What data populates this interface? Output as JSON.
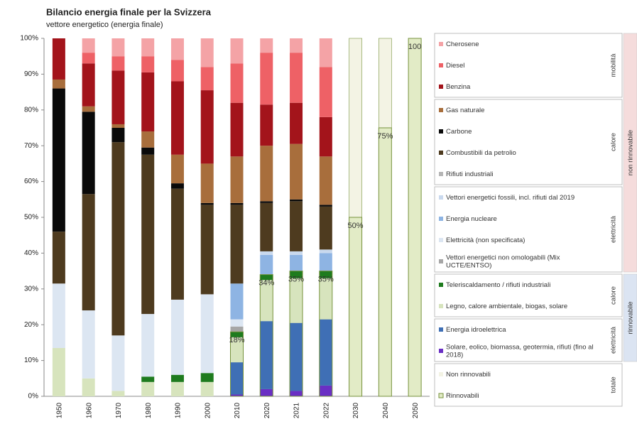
{
  "chart_data": {
    "type": "bar",
    "stacked": true,
    "title": "Bilancio energia finale per la Svizzera",
    "subtitle": "vettore energetico (energia finale)",
    "categories": [
      "1950",
      "1960",
      "1970",
      "1980",
      "1990",
      "2000",
      "2010",
      "2020",
      "2021",
      "2022",
      "2030",
      "2040",
      "2050"
    ],
    "ylim": [
      0,
      100
    ],
    "yticks": [
      {
        "value": 0,
        "label": "0%"
      },
      {
        "value": 10,
        "label": "10%"
      },
      {
        "value": 20,
        "label": "20%"
      },
      {
        "value": 30,
        "label": "30%"
      },
      {
        "value": 40,
        "label": "40%"
      },
      {
        "value": 50,
        "label": "50%"
      },
      {
        "value": 60,
        "label": "60%"
      },
      {
        "value": 70,
        "label": "70%"
      },
      {
        "value": 80,
        "label": "80%"
      },
      {
        "value": 90,
        "label": "90%"
      },
      {
        "value": 100,
        "label": "100%"
      }
    ],
    "sections": [
      {
        "label": "non rinnovabile",
        "color": "#f5dcdc",
        "groups": [
          {
            "label": "mobilità",
            "series": [
              {
                "name": "Cherosene",
                "color": "#f4a3a6",
                "values": [
                  null,
                  4,
                  5,
                  5,
                  6,
                  8,
                  7,
                  4,
                  4,
                  8,
                  null,
                  null,
                  null
                ]
              },
              {
                "name": "Diesel",
                "color": "#ee6166",
                "values": [
                  null,
                  3,
                  4,
                  4.5,
                  6,
                  6.5,
                  11,
                  14.5,
                  14,
                  14,
                  null,
                  null,
                  null
                ]
              },
              {
                "name": "Benzina",
                "color": "#a3141b",
                "values": [
                  11.5,
                  12,
                  15,
                  16.5,
                  20.5,
                  20.5,
                  15,
                  11.5,
                  11.5,
                  11,
                  null,
                  null,
                  null
                ]
              }
            ]
          },
          {
            "label": "calore",
            "series": [
              {
                "name": "Gas naturale",
                "color": "#a86e3c",
                "values": [
                  2.5,
                  1.5,
                  1,
                  4.5,
                  8,
                  11,
                  13,
                  15.5,
                  15.5,
                  13.5,
                  null,
                  null,
                  null
                ]
              },
              {
                "name": "Carbone",
                "color": "#0a0a0a",
                "values": [
                  40,
                  23,
                  4,
                  2,
                  1.5,
                  0.5,
                  0.5,
                  0.5,
                  0.5,
                  0.5,
                  null,
                  null,
                  null
                ]
              },
              {
                "name": "Combustibili da petrolio",
                "color": "#4e3b1f",
                "values": [
                  14.5,
                  32.5,
                  54,
                  44.5,
                  31,
                  25,
                  22,
                  13.5,
                  14,
                  12,
                  null,
                  null,
                  null
                ]
              },
              {
                "name": "Rifiuti industriali",
                "color": "#b5b5b5",
                "values": [
                  null,
                  null,
                  null,
                  null,
                  null,
                  null,
                  null,
                  null,
                  null,
                  null,
                  null,
                  null,
                  null
                ]
              }
            ]
          },
          {
            "label": "elettricità",
            "series": [
              {
                "name": "Vettori energetici fossili, incl. rifiuti dal 2019",
                "color": "#c9d9ee",
                "values": [
                  null,
                  null,
                  null,
                  null,
                  null,
                  null,
                  null,
                  1,
                  1,
                  1,
                  null,
                  null,
                  null
                ]
              },
              {
                "name": "Energia nucleare",
                "color": "#8eb4e3",
                "values": [
                  null,
                  null,
                  null,
                  null,
                  null,
                  null,
                  10,
                  5.5,
                  4.5,
                  5,
                  null,
                  null,
                  null
                ]
              },
              {
                "name": "Elettricità (non specificata)",
                "color": "#dce6f2",
                "values": [
                  18,
                  19,
                  15.5,
                  17.5,
                  21,
                  22,
                  2,
                  null,
                  null,
                  null,
                  null,
                  null,
                  null
                ]
              },
              {
                "name": "Vettori energetici non omologabili (Mix UCTE/ENTSO)",
                "color": "#a6a6a6",
                "values": [
                  null,
                  null,
                  null,
                  null,
                  null,
                  null,
                  1.5,
                  null,
                  null,
                  null,
                  null,
                  null,
                  null
                ]
              }
            ]
          }
        ]
      },
      {
        "label": "rinnovabile",
        "color": "#dbe4f2",
        "groups": [
          {
            "label": "calore",
            "series": [
              {
                "name": "Teleriscaldamento / rifiuti industriali",
                "color": "#1e7b1e",
                "values": [
                  null,
                  null,
                  null,
                  1.5,
                  2,
                  2.5,
                  1.5,
                  1.5,
                  2,
                  2,
                  null,
                  null,
                  null
                ]
              },
              {
                "name": "Legno, calore ambientale, biogas, solare",
                "color": "#d7e4bd",
                "values": [
                  13.5,
                  5,
                  1.5,
                  4,
                  4,
                  4,
                  7,
                  11.5,
                  12.5,
                  11.5,
                  null,
                  null,
                  null
                ]
              }
            ]
          },
          {
            "label": "elettricità",
            "series": [
              {
                "name": "Energia idroelettrica",
                "color": "#3f6fb5",
                "values": [
                  null,
                  null,
                  null,
                  null,
                  null,
                  null,
                  9,
                  19,
                  19,
                  18.5,
                  null,
                  null,
                  null
                ]
              },
              {
                "name": "Solare, eolico, biomassa, geotermia, rifiuti (fino al 2018)",
                "color": "#6a2fc4",
                "values": [
                  null,
                  null,
                  null,
                  null,
                  null,
                  null,
                  0.5,
                  2,
                  1.5,
                  3,
                  null,
                  null,
                  null
                ]
              }
            ]
          }
        ]
      }
    ],
    "totals": {
      "label": "totale",
      "series": [
        {
          "name": "Non rinnovabili",
          "color": "#f3f3e4",
          "values": [
            null,
            null,
            null,
            null,
            null,
            null,
            null,
            null,
            null,
            null,
            50,
            25,
            0
          ]
        },
        {
          "name": "Rinnovabili",
          "color": "#e2ebc6",
          "stroke": "#76923c",
          "values": [
            null,
            null,
            null,
            null,
            null,
            null,
            18,
            34,
            35,
            35,
            50,
            75,
            100
          ],
          "value_labels": [
            null,
            null,
            null,
            null,
            null,
            null,
            "18%",
            "34%",
            "35%",
            "35%",
            "50%",
            "75%",
            "100"
          ]
        }
      ]
    }
  }
}
